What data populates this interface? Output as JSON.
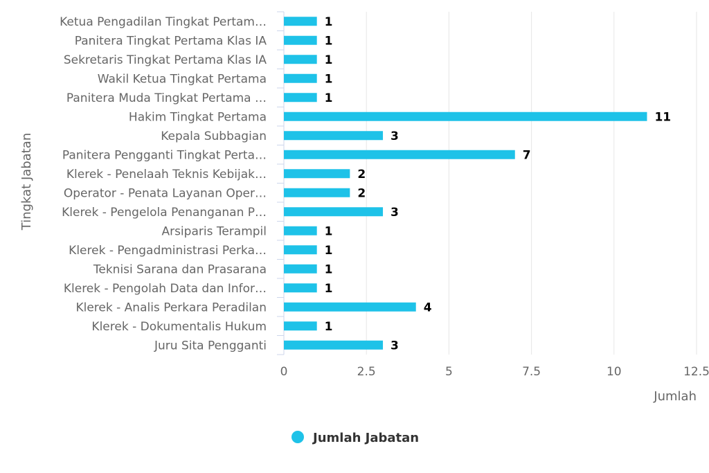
{
  "chart_data": {
    "type": "bar",
    "orientation": "horizontal",
    "categories": [
      "Ketua Pengadilan Tingkat Pertam…",
      "Panitera Tingkat Pertama Klas IA",
      "Sekretaris Tingkat Pertama Klas IA",
      "Wakil Ketua Tingkat Pertama",
      "Panitera Muda Tingkat Pertama …",
      "Hakim Tingkat Pertama",
      "Kepala Subbagian",
      "Panitera Pengganti Tingkat Perta…",
      "Klerek - Penelaah Teknis Kebijak…",
      "Operator - Penata Layanan Oper…",
      "Klerek - Pengelola Penanganan P…",
      "Arsiparis Terampil",
      "Klerek - Pengadministrasi Perka…",
      "Teknisi Sarana dan Prasarana",
      "Klerek - Pengolah Data dan Infor…",
      "Klerek - Analis Perkara Peradilan",
      "Klerek - Dokumentalis Hukum",
      "Juru Sita Pengganti"
    ],
    "series": [
      {
        "name": "Jumlah Jabatan",
        "color": "#1ec2e8",
        "values": [
          1,
          1,
          1,
          1,
          1,
          11,
          3,
          7,
          2,
          2,
          3,
          1,
          1,
          1,
          1,
          4,
          1,
          3
        ]
      }
    ],
    "xlabel": "Jumlah",
    "ylabel": "Tingkat Jabatan",
    "xlim": [
      0,
      12.5
    ],
    "xticks": [
      "0",
      "2.5",
      "5",
      "7.5",
      "10",
      "12.5"
    ],
    "grid": true,
    "legend_position": "bottom-center"
  }
}
